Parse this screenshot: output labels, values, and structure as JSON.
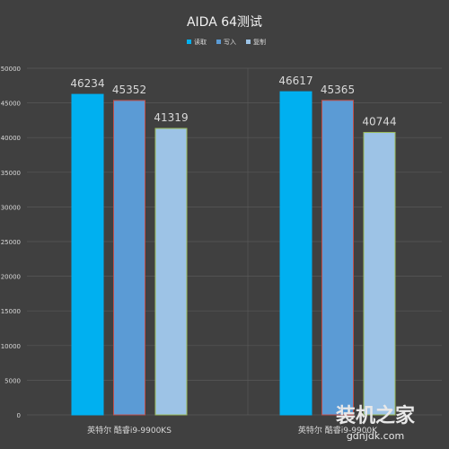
{
  "chart_data": {
    "type": "bar",
    "title": "AIDA 64测试",
    "categories": [
      "英特尔 酷睿i9-9900KS",
      "英特尔 酷睿i9-9900K"
    ],
    "series": [
      {
        "name": "读取",
        "values": [
          46234,
          46617
        ],
        "color": "#00b0f0"
      },
      {
        "name": "写入",
        "values": [
          45352,
          45365
        ],
        "color": "#5b9bd5"
      },
      {
        "name": "复制",
        "values": [
          41319,
          40744
        ],
        "color": "#9dc3e6"
      }
    ],
    "ylim": [
      0,
      50000
    ],
    "yticks": [
      0,
      5000,
      10000,
      15000,
      20000,
      25000,
      30000,
      35000,
      40000,
      45000,
      50000
    ],
    "legend_position": "top",
    "grid": true,
    "xlabel": "",
    "ylabel": ""
  },
  "watermark": {
    "text_cn": "装机之家",
    "text_en": "gdnjdk.com"
  },
  "colors": {
    "background": "#404040",
    "gridline": "#595959",
    "text": "#d9d9d9",
    "title": "#f2f2f2"
  }
}
